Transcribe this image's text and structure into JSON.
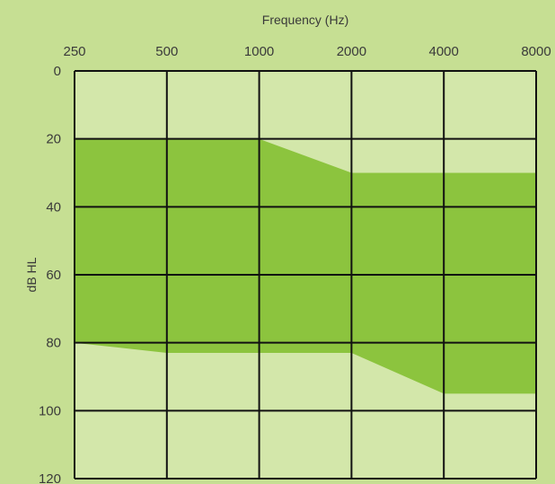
{
  "chart_data": {
    "type": "area",
    "title": "",
    "xlabel": "Frequency (Hz)",
    "ylabel": "dB HL",
    "x_scale": "log2",
    "x_ticks": [
      250,
      500,
      1000,
      2000,
      4000,
      8000
    ],
    "x_tick_labels": [
      "250",
      "500",
      "1000",
      "2000",
      "4000",
      "8000"
    ],
    "y_ticks": [
      0,
      20,
      40,
      60,
      80,
      100,
      120
    ],
    "y_tick_labels": [
      "0",
      "20",
      "40",
      "60",
      "80",
      "100",
      "120"
    ],
    "xlim": [
      250,
      8000
    ],
    "ylim": [
      0,
      120
    ],
    "y_inverted": true,
    "x_axis_position": "top",
    "grid": true,
    "band": {
      "upper_bound": [
        {
          "x": 250,
          "y": 20
        },
        {
          "x": 1000,
          "y": 20
        },
        {
          "x": 2000,
          "y": 30
        },
        {
          "x": 8000,
          "y": 30
        }
      ],
      "lower_bound": [
        {
          "x": 250,
          "y": 80
        },
        {
          "x": 500,
          "y": 83
        },
        {
          "x": 2000,
          "y": 83
        },
        {
          "x": 4000,
          "y": 95
        },
        {
          "x": 8000,
          "y": 95
        }
      ]
    },
    "colors": {
      "background": "#c6df93",
      "plot_background": "#d3e7aa",
      "band_fill": "#8cc43e",
      "grid": "#111111",
      "text": "#3a3a3a"
    }
  }
}
